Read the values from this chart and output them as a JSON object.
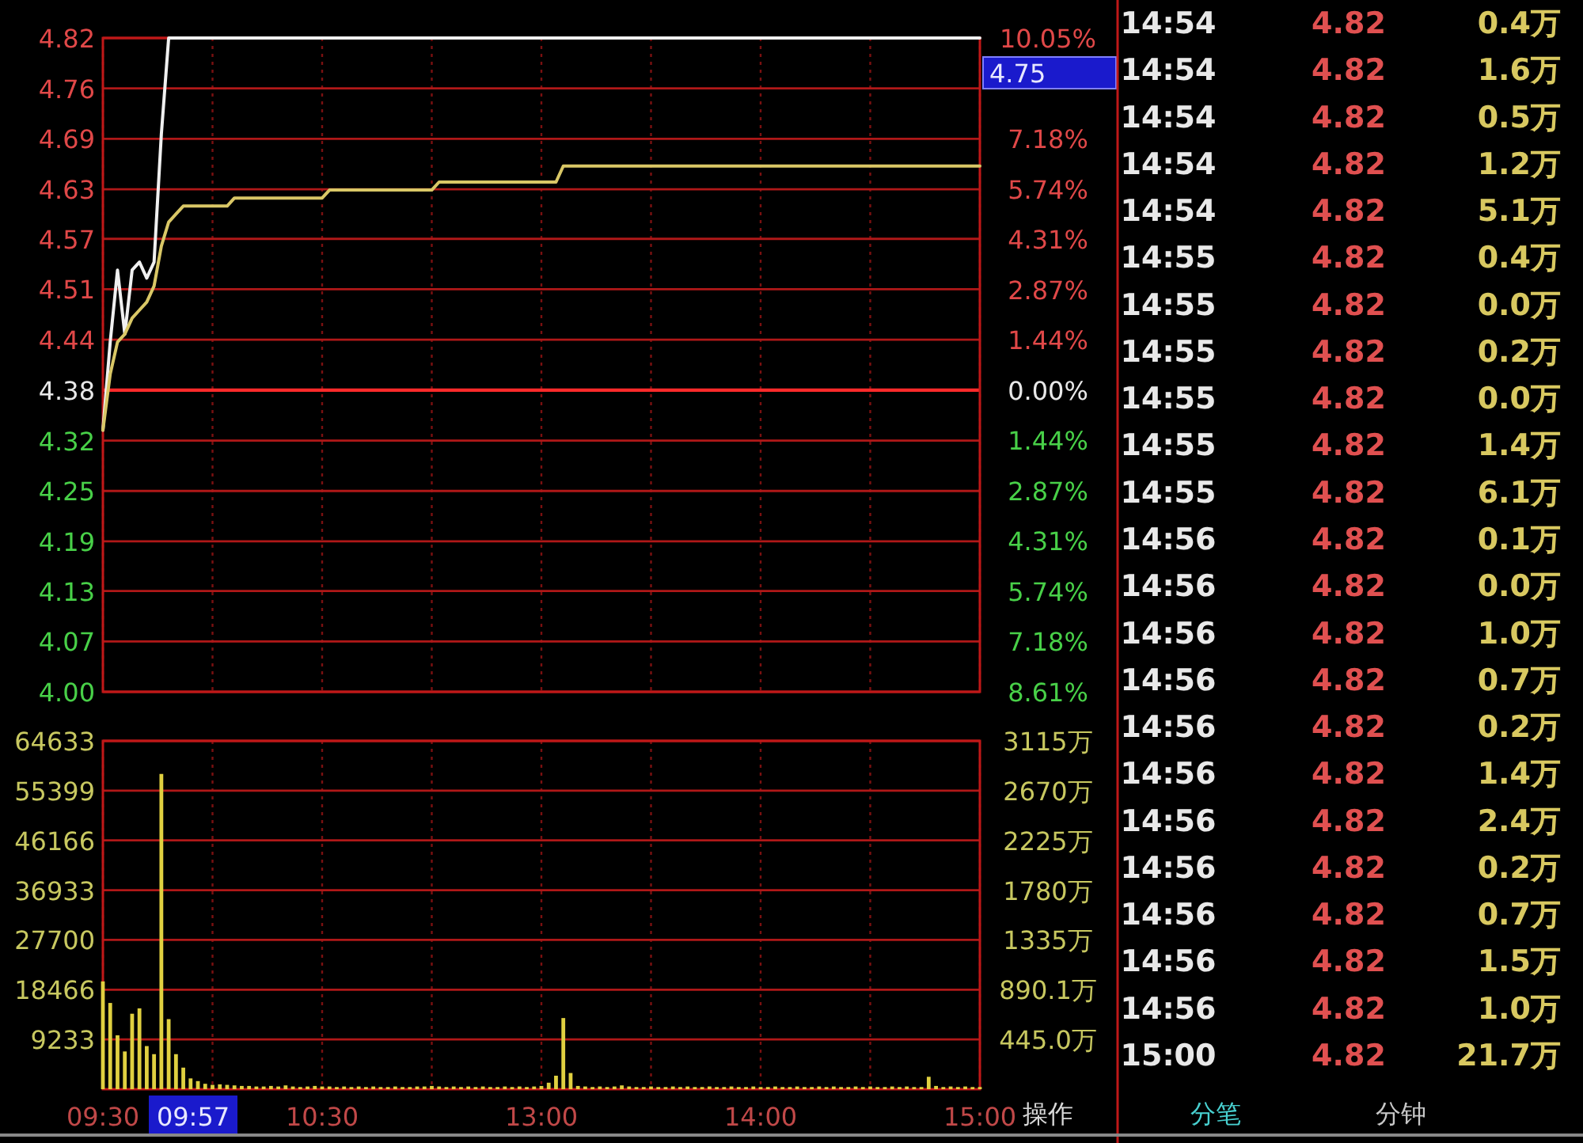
{
  "chart_data": [
    {
      "type": "line",
      "tick_labels": "y",
      "grid": true,
      "categories": [
        null,
        null,
        null,
        null,
        null,
        null,
        null,
        null,
        null,
        null,
        null,
        null,
        null,
        null,
        null,
        null,
        null,
        null,
        null,
        null,
        null,
        null,
        null,
        null,
        null,
        null,
        null,
        null,
        null,
        null,
        null,
        null,
        null,
        null,
        null,
        null,
        null,
        null,
        null,
        null,
        null,
        null,
        null,
        null,
        null,
        null,
        null,
        null,
        null,
        null,
        null,
        null,
        null,
        null,
        null,
        null,
        null,
        null,
        null,
        null,
        null,
        null,
        null,
        null,
        null,
        null,
        null,
        null,
        null,
        null,
        null,
        null,
        null,
        null,
        null,
        null,
        null,
        null,
        null,
        null,
        null,
        null,
        null,
        null,
        null,
        null,
        null,
        null,
        null,
        null,
        null,
        null,
        null,
        null,
        null,
        null,
        null,
        null,
        null,
        null,
        null,
        null,
        null,
        null,
        null,
        null,
        null,
        null,
        null,
        null,
        null,
        null,
        null,
        null,
        null,
        null,
        null,
        null,
        null,
        null,
        null
      ],
      "ylim": [
        4.003,
        4.82
      ],
      "yticks": [
        4.82,
        {
          "value": 4.757,
          "label": "4.76"
        },
        {
          "value": 4.694,
          "label": "4.69"
        },
        {
          "value": 4.631,
          "label": "4.63"
        },
        {
          "value": 4.569,
          "label": "4.57"
        },
        {
          "value": 4.506,
          "label": "4.51"
        },
        {
          "value": 4.443,
          "label": "4.44"
        },
        4.38,
        {
          "value": 4.317,
          "label": "4.32"
        },
        {
          "value": 4.254,
          "label": "4.25"
        },
        {
          "value": 4.191,
          "label": "4.19"
        },
        {
          "value": 4.129,
          "label": "4.13"
        },
        {
          "value": 4.066,
          "label": "4.07"
        },
        {
          "value": 4.003,
          "label": "4.00"
        }
      ],
      "y2lim": [
        -8.614,
        10.05
      ],
      "y2ticks": [
        {
          "value": 10.05,
          "label": "10.05%"
        },
        {
          "value": 7.179,
          "label": "7.18%"
        },
        {
          "value": 5.743,
          "label": "5.74%"
        },
        {
          "value": 4.307,
          "label": "4.31%"
        },
        {
          "value": 2.871,
          "label": "2.87%"
        },
        {
          "value": 1.436,
          "label": "1.44%"
        },
        {
          "value": 0,
          "label": "0.00%"
        },
        {
          "value": -1.436,
          "label": "1.44%"
        },
        {
          "value": -2.871,
          "label": "2.87%"
        },
        {
          "value": -4.307,
          "label": "4.31%"
        },
        {
          "value": -5.743,
          "label": "5.74%"
        },
        {
          "value": -7.179,
          "label": "7.18%"
        },
        {
          "value": -8.614,
          "label": "8.61%"
        }
      ],
      "ref_lines": [
        {
          "axis": "y",
          "value": 4.38,
          "color": "#ff2a2a"
        }
      ],
      "annotations": [
        "4.75"
      ],
      "series": [
        {
          "color": "#f0f0f0",
          "values": [
            4.33,
            4.44,
            4.53,
            4.45,
            4.53,
            4.54,
            4.52,
            4.54,
            4.7,
            4.82,
            4.82,
            4.82,
            4.82,
            4.82,
            4.82,
            4.82,
            4.82,
            4.82,
            4.82,
            4.82,
            4.82,
            4.82,
            4.82,
            4.82,
            4.82,
            4.82,
            4.82,
            4.82,
            4.82,
            4.82,
            4.82,
            4.82,
            4.82,
            4.82,
            4.82,
            4.82,
            4.82,
            4.82,
            4.82,
            4.82,
            4.82,
            4.82,
            4.82,
            4.82,
            4.82,
            4.82,
            4.82,
            4.82,
            4.82,
            4.82,
            4.82,
            4.82,
            4.82,
            4.82,
            4.82,
            4.82,
            4.82,
            4.82,
            4.82,
            4.82,
            4.82,
            4.82,
            4.82,
            4.82,
            4.82,
            4.82,
            4.82,
            4.82,
            4.82,
            4.82,
            4.82,
            4.82,
            4.82,
            4.82,
            4.82,
            4.82,
            4.82,
            4.82,
            4.82,
            4.82,
            4.82,
            4.82,
            4.82,
            4.82,
            4.82,
            4.82,
            4.82,
            4.82,
            4.82,
            4.82,
            4.82,
            4.82,
            4.82,
            4.82,
            4.82,
            4.82,
            4.82,
            4.82,
            4.82,
            4.82,
            4.82,
            4.82,
            4.82,
            4.82,
            4.82,
            4.82,
            4.82,
            4.82,
            4.82,
            4.82,
            4.82,
            4.82,
            4.82,
            4.82,
            4.82,
            4.82,
            4.82,
            4.82,
            4.82,
            4.82,
            4.82
          ]
        },
        {
          "color": "#d9c766",
          "values": [
            4.33,
            4.4,
            4.44,
            4.45,
            4.47,
            4.48,
            4.49,
            4.51,
            4.56,
            4.59,
            4.6,
            4.61,
            4.61,
            4.61,
            4.61,
            4.61,
            4.61,
            4.61,
            4.62,
            4.62,
            4.62,
            4.62,
            4.62,
            4.62,
            4.62,
            4.62,
            4.62,
            4.62,
            4.62,
            4.62,
            4.62,
            4.63,
            4.63,
            4.63,
            4.63,
            4.63,
            4.63,
            4.63,
            4.63,
            4.63,
            4.63,
            4.63,
            4.63,
            4.63,
            4.63,
            4.63,
            4.64,
            4.64,
            4.64,
            4.64,
            4.64,
            4.64,
            4.64,
            4.64,
            4.64,
            4.64,
            4.64,
            4.64,
            4.64,
            4.64,
            4.64,
            4.64,
            4.64,
            4.66,
            4.66,
            4.66,
            4.66,
            4.66,
            4.66,
            4.66,
            4.66,
            4.66,
            4.66,
            4.66,
            4.66,
            4.66,
            4.66,
            4.66,
            4.66,
            4.66,
            4.66,
            4.66,
            4.66,
            4.66,
            4.66,
            4.66,
            4.66,
            4.66,
            4.66,
            4.66,
            4.66,
            4.66,
            4.66,
            4.66,
            4.66,
            4.66,
            4.66,
            4.66,
            4.66,
            4.66,
            4.66,
            4.66,
            4.66,
            4.66,
            4.66,
            4.66,
            4.66,
            4.66,
            4.66,
            4.66,
            4.66,
            4.66,
            4.66,
            4.66,
            4.66,
            4.66,
            4.66,
            4.66,
            4.66,
            4.66,
            4.66
          ]
        }
      ]
    },
    {
      "type": "bar",
      "grid": true,
      "categories": [
        "09:30",
        null,
        null,
        null,
        null,
        null,
        null,
        null,
        null,
        null,
        null,
        null,
        null,
        null,
        null,
        null,
        null,
        null,
        null,
        null,
        null,
        null,
        null,
        null,
        null,
        null,
        null,
        null,
        null,
        null,
        "10:30",
        null,
        null,
        null,
        null,
        null,
        null,
        null,
        null,
        null,
        null,
        null,
        null,
        null,
        null,
        null,
        null,
        null,
        null,
        null,
        null,
        null,
        null,
        null,
        null,
        null,
        null,
        null,
        null,
        null,
        "13:00",
        null,
        null,
        null,
        null,
        null,
        null,
        null,
        null,
        null,
        null,
        null,
        null,
        null,
        null,
        null,
        null,
        null,
        null,
        null,
        null,
        null,
        null,
        null,
        null,
        null,
        null,
        null,
        null,
        null,
        "14:00",
        null,
        null,
        null,
        null,
        null,
        null,
        null,
        null,
        null,
        null,
        null,
        null,
        null,
        null,
        null,
        null,
        null,
        null,
        null,
        null,
        null,
        null,
        null,
        null,
        null,
        null,
        null,
        null,
        null,
        "15:00"
      ],
      "ylim": [
        0,
        64633
      ],
      "yticks": [
        64633,
        55399,
        46166,
        36933,
        27700,
        18466,
        9233
      ],
      "y2lim": [
        0,
        3115
      ],
      "y2ticks": [
        {
          "value": 3115,
          "label": "3115万"
        },
        {
          "value": 2670,
          "label": "2670万"
        },
        {
          "value": 2225,
          "label": "2225万"
        },
        {
          "value": 1780,
          "label": "1780万"
        },
        {
          "value": 1335,
          "label": "1335万"
        },
        {
          "value": 890.1,
          "label": "890.1万"
        },
        {
          "value": 445.0,
          "label": "445.0万"
        }
      ],
      "annotations": [
        "09:57"
      ],
      "series": [
        {
          "color": "#e0d040",
          "values": [
            20000,
            16000,
            10000,
            7000,
            14000,
            15000,
            8000,
            6500,
            58500,
            13000,
            6500,
            4000,
            2000,
            1500,
            1000,
            800,
            900,
            800,
            700,
            600,
            600,
            500,
            500,
            600,
            500,
            700,
            500,
            400,
            500,
            600,
            500,
            500,
            400,
            500,
            400,
            500,
            400,
            500,
            400,
            400,
            500,
            400,
            400,
            500,
            500,
            600,
            500,
            400,
            500,
            400,
            500,
            400,
            500,
            400,
            400,
            500,
            400,
            500,
            400,
            500,
            600,
            1200,
            2500,
            13200,
            3000,
            600,
            500,
            400,
            500,
            400,
            500,
            700,
            500,
            400,
            400,
            500,
            400,
            400,
            500,
            400,
            500,
            400,
            400,
            500,
            400,
            400,
            500,
            400,
            400,
            500,
            400,
            400,
            500,
            400,
            400,
            500,
            400,
            400,
            500,
            400,
            500,
            400,
            400,
            500,
            400,
            500,
            400,
            400,
            500,
            400,
            500,
            400,
            400,
            2300,
            600,
            400,
            500,
            400,
            500,
            400,
            400
          ]
        }
      ]
    },
    {
      "type": "other",
      "annotations": [
        "操作",
        "分笔",
        "分钟",
        "14:54",
        "4.82",
        "0.4万",
        "14:54",
        "4.82",
        "1.6万",
        "14:54",
        "4.82",
        "0.5万",
        "14:54",
        "4.82",
        "1.2万",
        "14:54",
        "4.82",
        "5.1万",
        "14:55",
        "4.82",
        "0.4万",
        "14:55",
        "4.82",
        "0.0万",
        "14:55",
        "4.82",
        "0.2万",
        "14:55",
        "4.82",
        "0.0万",
        "14:55",
        "4.82",
        "1.4万",
        "14:55",
        "4.82",
        "6.1万",
        "14:56",
        "4.82",
        "0.1万",
        "14:56",
        "4.82",
        "0.0万",
        "14:56",
        "4.82",
        "1.0万",
        "14:56",
        "4.82",
        "0.7万",
        "14:56",
        "4.82",
        "0.2万",
        "14:56",
        "4.82",
        "1.4万",
        "14:56",
        "4.82",
        "2.4万",
        "14:56",
        "4.82",
        "0.2万",
        "14:56",
        "4.82",
        "0.7万",
        "14:56",
        "4.82",
        "1.5万",
        "14:56",
        "4.82",
        "1.0万",
        "15:00",
        "4.82",
        "21.7万"
      ]
    }
  ]
}
